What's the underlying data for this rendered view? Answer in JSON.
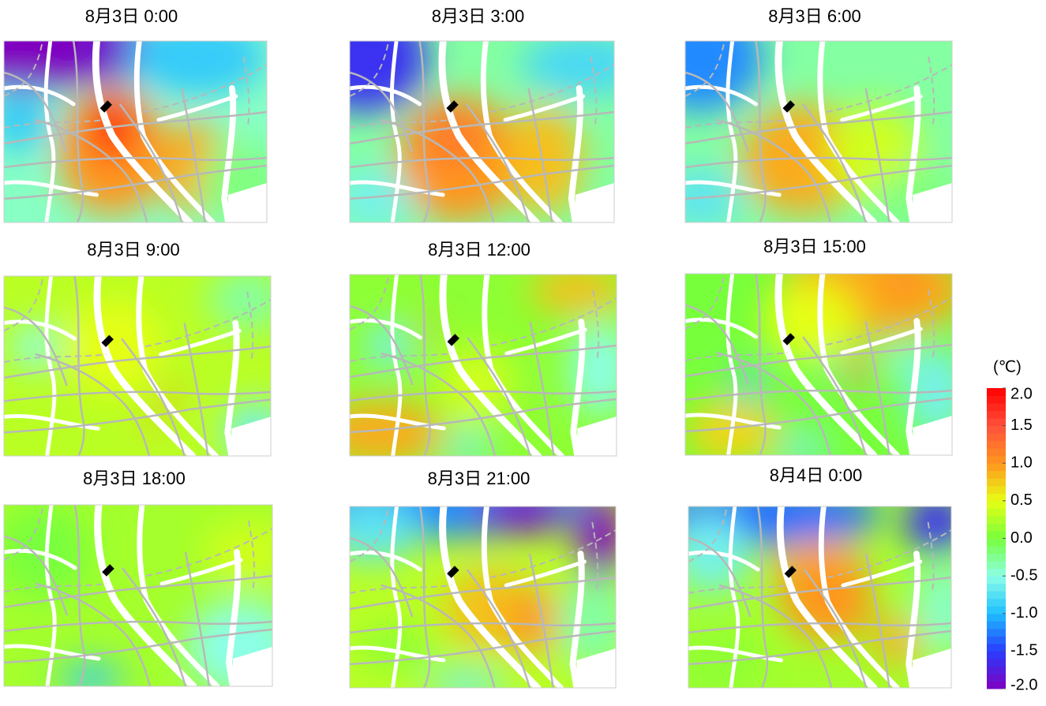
{
  "panels": [
    {
      "title": "8月3日 0:00"
    },
    {
      "title": "8月3日 3:00"
    },
    {
      "title": "8月3日 6:00"
    },
    {
      "title": "8月3日 9:00"
    },
    {
      "title": "8月3日 12:00"
    },
    {
      "title": "8月3日 15:00"
    },
    {
      "title": "8月3日 18:00"
    },
    {
      "title": "8月3日 21:00"
    },
    {
      "title": "8月4日 0:00"
    }
  ],
  "colorbar": {
    "unit": "(℃)",
    "lim": [
      -2,
      2
    ],
    "ticks": [
      {
        "value": 2,
        "label": "2.0"
      },
      {
        "value": 1.5,
        "label": "1.5"
      },
      {
        "value": 1,
        "label": "1.0"
      },
      {
        "value": 0.5,
        "label": "0.5"
      },
      {
        "value": 0,
        "label": "0.0"
      },
      {
        "value": -0.5,
        "label": "-0.5"
      },
      {
        "value": -1,
        "label": "-1.0"
      },
      {
        "value": -1.5,
        "label": "-1.5"
      },
      {
        "value": -2,
        "label": "-2.0"
      }
    ]
  }
}
